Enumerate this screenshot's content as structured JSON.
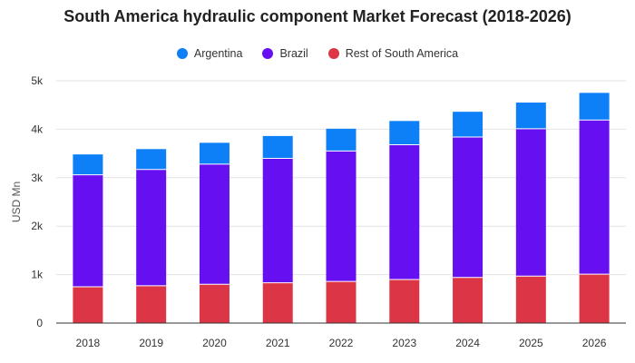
{
  "chart_data": {
    "type": "bar",
    "stacked": true,
    "title": "South America hydraulic component Market Forecast (2018-2026)",
    "xlabel": "",
    "ylabel": "USD Mn",
    "ylim": [
      0,
      5000
    ],
    "yticks": [
      0,
      1000,
      2000,
      3000,
      4000,
      5000
    ],
    "ytick_labels": [
      "0",
      "1k",
      "2k",
      "3k",
      "4k",
      "5k"
    ],
    "grid": true,
    "legend_position": "top-center",
    "categories": [
      "2018",
      "2019",
      "2020",
      "2021",
      "2022",
      "2023",
      "2024",
      "2025",
      "2026"
    ],
    "series": [
      {
        "name": "Rest of South America",
        "color": "#dc3545",
        "values": [
          750,
          770,
          800,
          830,
          860,
          900,
          940,
          970,
          1010
        ]
      },
      {
        "name": "Brazil",
        "color": "#6610f2",
        "values": [
          2310,
          2400,
          2480,
          2570,
          2690,
          2780,
          2900,
          3040,
          3180
        ]
      },
      {
        "name": "Argentina",
        "color": "#0d7ff7",
        "values": [
          420,
          420,
          440,
          460,
          460,
          490,
          520,
          540,
          560
        ]
      }
    ]
  },
  "legend": [
    {
      "label": "Argentina",
      "color": "#0d7ff7"
    },
    {
      "label": "Brazil",
      "color": "#6610f2"
    },
    {
      "label": "Rest of South America",
      "color": "#dc3545"
    }
  ]
}
